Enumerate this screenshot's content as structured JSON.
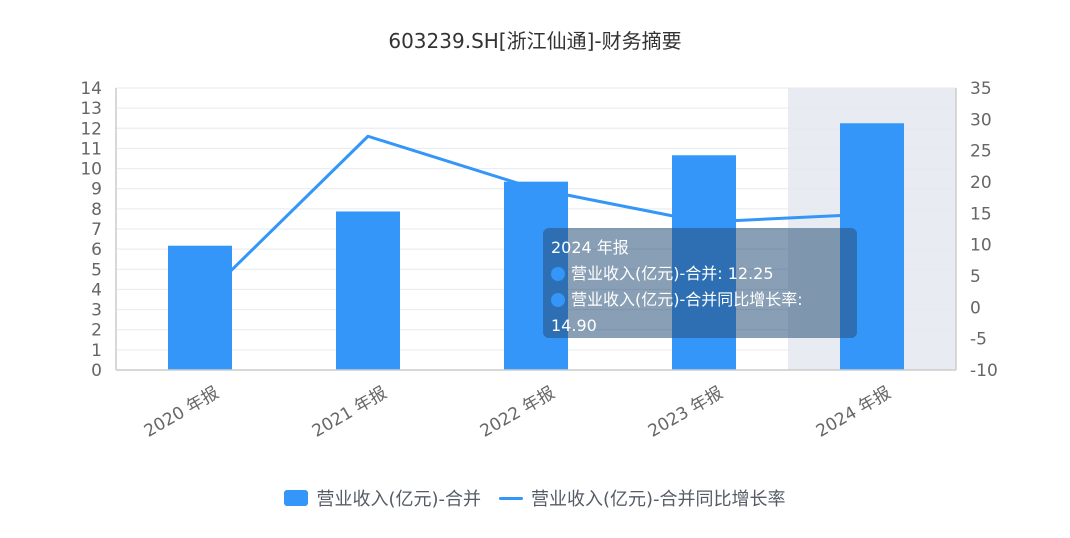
{
  "chart_data": {
    "type": "bar",
    "title": "603239.SH[浙江仙通]-财务摘要",
    "categories": [
      "2020 年报",
      "2021 年报",
      "2022 年报",
      "2023 年报",
      "2024 年报"
    ],
    "series": [
      {
        "name": "营业收入(亿元)-合并",
        "type": "bar",
        "axis": "left",
        "values": [
          6.17,
          7.87,
          9.35,
          10.66,
          12.25
        ]
      },
      {
        "name": "营业收入(亿元)-合并同比增长率",
        "type": "line",
        "axis": "right",
        "values": [
          1.0,
          27.3,
          18.9,
          13.6,
          14.9
        ]
      }
    ],
    "left_axis": {
      "ylim": [
        0,
        14
      ],
      "ticks": [
        0,
        1,
        2,
        3,
        4,
        5,
        6,
        7,
        8,
        9,
        10,
        11,
        12,
        13,
        14
      ]
    },
    "right_axis": {
      "ylim": [
        -10,
        35
      ],
      "ticks": [
        -10,
        -5,
        0,
        5,
        10,
        15,
        20,
        25,
        30,
        35
      ]
    },
    "highlight_category": "2024 年报",
    "grid": true,
    "legend_position": "bottom",
    "colors": {
      "series": "#3396f8",
      "highlight": "#e8ebf1",
      "grid": "#e6e9ee",
      "axis_text": "#666666"
    }
  },
  "tooltip": {
    "title": "2024 年报",
    "row1": "营业收入(亿元)-合并: 12.25",
    "row2": "营业收入(亿元)-合并同比增长率:",
    "row2_value": "14.90"
  }
}
